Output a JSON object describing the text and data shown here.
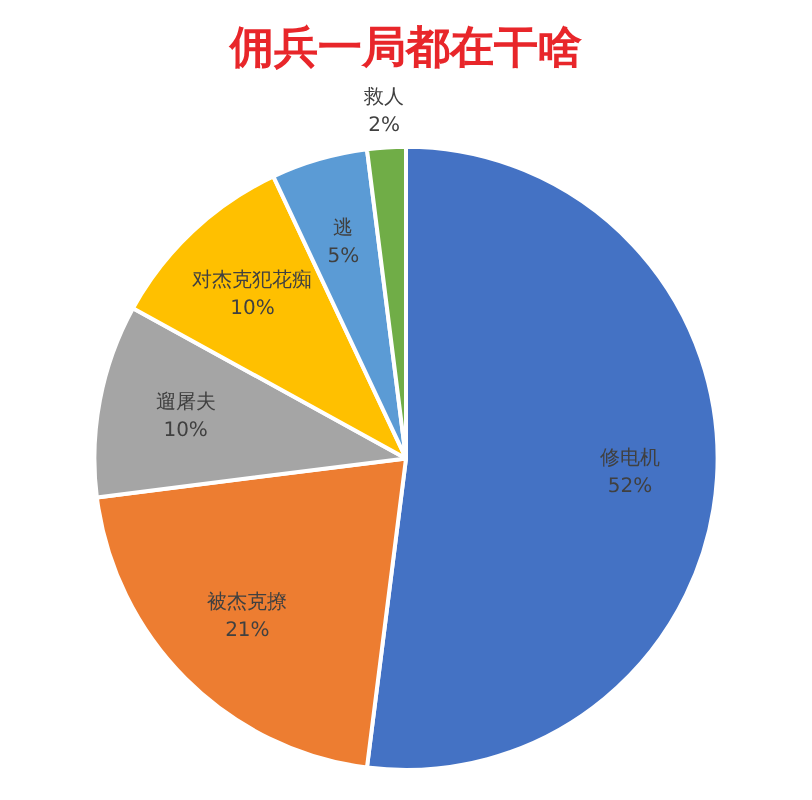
{
  "chart_data": {
    "type": "pie",
    "title": "佣兵一局都在干啥",
    "categories": [
      "修电机",
      "被杰克撩",
      "遛屠夫",
      "对杰克犯花痴",
      "逃",
      "救人"
    ],
    "values": [
      52,
      21,
      10,
      10,
      5,
      2
    ],
    "value_labels": [
      "52%",
      "21%",
      "10%",
      "10%",
      "5%",
      "2%"
    ],
    "colors": [
      "#4472c4",
      "#ed7d31",
      "#a5a5a5",
      "#ffc000",
      "#5b9bd5",
      "#70ad47"
    ],
    "legend": false
  }
}
